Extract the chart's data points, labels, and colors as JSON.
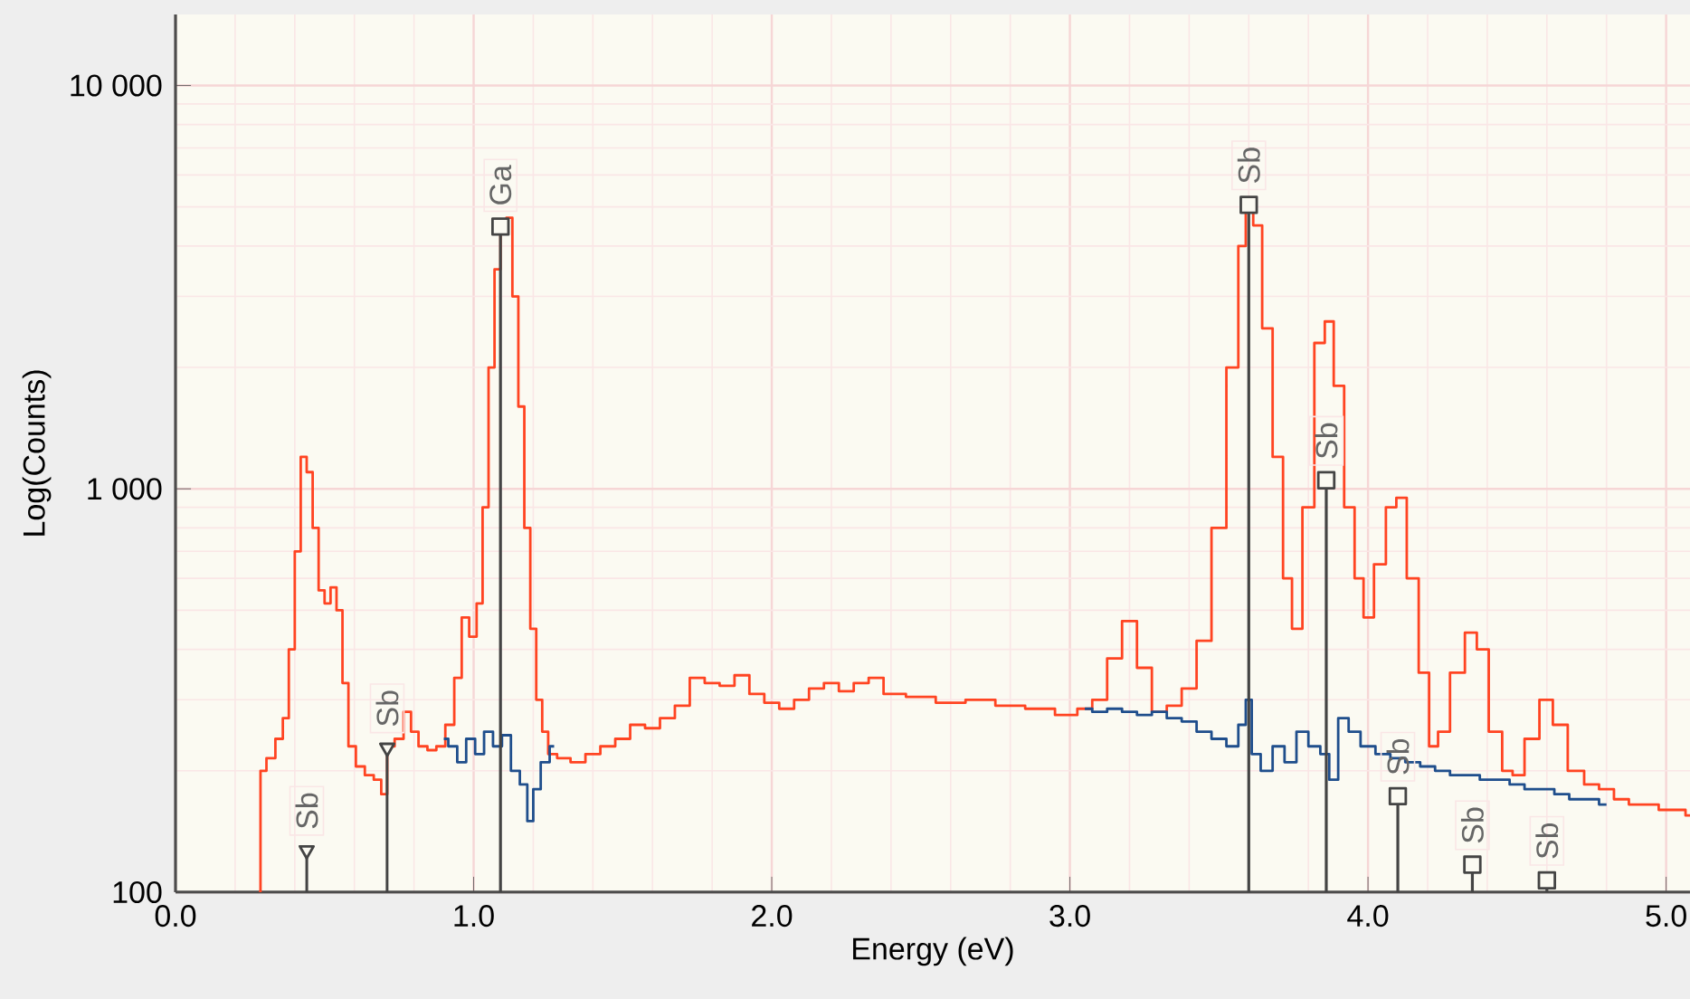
{
  "chart_data": {
    "type": "step",
    "xlabel": "Energy (eV)",
    "ylabel": "Log(Counts)",
    "log": "y",
    "grid": true,
    "marker": "none",
    "line_style": "solid",
    "xlim": [
      0,
      5.08
    ],
    "ylim": [
      100,
      15000
    ],
    "xticks": [
      {
        "value": 0,
        "label": "0.0"
      },
      {
        "value": 1,
        "label": "1.0"
      },
      {
        "value": 2,
        "label": "2.0"
      },
      {
        "value": 3,
        "label": "3.0"
      },
      {
        "value": 4,
        "label": "4.0"
      },
      {
        "value": 5,
        "label": "5.0"
      }
    ],
    "yticks": [
      {
        "value": 100,
        "label": "100"
      },
      {
        "value": 1000,
        "label": "1 000"
      },
      {
        "value": 10000,
        "label": "10 000"
      }
    ],
    "series": [
      {
        "color": "#ff4422",
        "x": [
          0.28,
          0.29,
          0.32,
          0.35,
          0.37,
          0.39,
          0.41,
          0.43,
          0.45,
          0.47,
          0.49,
          0.51,
          0.53,
          0.55,
          0.57,
          0.59,
          0.62,
          0.65,
          0.68,
          0.7,
          0.72,
          0.75,
          0.78,
          0.8,
          0.83,
          0.86,
          0.89,
          0.92,
          0.95,
          0.97,
          1.0,
          1.02,
          1.04,
          1.06,
          1.08,
          1.1,
          1.12,
          1.14,
          1.16,
          1.18,
          1.2,
          1.22,
          1.24,
          1.26,
          1.3,
          1.35,
          1.4,
          1.45,
          1.5,
          1.55,
          1.6,
          1.65,
          1.7,
          1.75,
          1.8,
          1.85,
          1.9,
          1.95,
          2.0,
          2.05,
          2.1,
          2.15,
          2.2,
          2.25,
          2.3,
          2.35,
          2.4,
          2.5,
          2.6,
          2.7,
          2.8,
          2.9,
          3.0,
          3.05,
          3.1,
          3.15,
          3.2,
          3.25,
          3.3,
          3.35,
          3.4,
          3.45,
          3.5,
          3.55,
          3.58,
          3.6,
          3.63,
          3.66,
          3.7,
          3.73,
          3.76,
          3.8,
          3.84,
          3.87,
          3.9,
          3.94,
          3.97,
          4.0,
          4.04,
          4.08,
          4.11,
          4.15,
          4.19,
          4.22,
          4.25,
          4.3,
          4.35,
          4.38,
          4.43,
          4.47,
          4.5,
          4.55,
          4.6,
          4.64,
          4.7,
          4.75,
          4.8,
          4.85,
          4.9,
          4.95,
          5.0,
          5.05,
          5.08
        ],
        "values": [
          100,
          200,
          215,
          240,
          270,
          400,
          700,
          1200,
          1100,
          800,
          560,
          520,
          570,
          500,
          330,
          230,
          205,
          195,
          190,
          175,
          230,
          240,
          280,
          250,
          230,
          225,
          230,
          260,
          340,
          480,
          430,
          520,
          900,
          2000,
          3500,
          4500,
          4700,
          3000,
          1600,
          800,
          450,
          300,
          250,
          220,
          215,
          210,
          220,
          230,
          240,
          260,
          255,
          270,
          290,
          340,
          330,
          325,
          345,
          310,
          295,
          285,
          300,
          320,
          330,
          315,
          330,
          340,
          310,
          305,
          295,
          300,
          290,
          285,
          275,
          285,
          300,
          380,
          470,
          360,
          280,
          290,
          320,
          420,
          800,
          2000,
          4000,
          5000,
          4500,
          2500,
          1200,
          600,
          450,
          900,
          2300,
          2600,
          1800,
          900,
          600,
          480,
          650,
          900,
          950,
          600,
          350,
          230,
          250,
          350,
          440,
          400,
          250,
          200,
          195,
          240,
          300,
          260,
          200,
          185,
          180,
          170,
          165,
          165,
          160,
          160,
          155
        ]
      },
      {
        "color": "#1f4e8c",
        "x": [
          0.9,
          0.93,
          0.96,
          0.99,
          1.02,
          1.05,
          1.08,
          1.11,
          1.14,
          1.17,
          1.19,
          1.21,
          1.24,
          1.27,
          1.28,
          3.05,
          3.1,
          3.15,
          3.2,
          3.25,
          3.3,
          3.35,
          3.4,
          3.45,
          3.5,
          3.55,
          3.58,
          3.6,
          3.62,
          3.66,
          3.7,
          3.74,
          3.78,
          3.82,
          3.86,
          3.88,
          3.92,
          3.95,
          4.0,
          4.05,
          4.1,
          4.15,
          4.2,
          4.25,
          4.3,
          4.35,
          4.4,
          4.45,
          4.5,
          4.55,
          4.6,
          4.65,
          4.7,
          4.75,
          4.8
        ],
        "values": [
          240,
          230,
          210,
          240,
          220,
          250,
          230,
          245,
          200,
          185,
          150,
          180,
          210,
          230,
          null,
          285,
          280,
          285,
          280,
          275,
          280,
          270,
          265,
          250,
          240,
          230,
          260,
          300,
          220,
          200,
          230,
          210,
          250,
          230,
          220,
          190,
          270,
          250,
          230,
          220,
          215,
          210,
          205,
          200,
          195,
          195,
          190,
          190,
          185,
          180,
          180,
          175,
          170,
          170,
          165
        ]
      },
      {
        "type": "lollipop",
        "color": "#444444",
        "marker": "triangle",
        "x": [
          0.44,
          0.71
        ],
        "values": [
          127,
          228
        ]
      },
      {
        "type": "lollipop",
        "color": "#444444",
        "marker": "square",
        "x": [
          1.09,
          3.6,
          3.86,
          4.1,
          4.35,
          4.6
        ],
        "values": [
          4470,
          5060,
          1050,
          173,
          117,
          107
        ]
      }
    ],
    "annotations": [
      {
        "text": "Sb",
        "x": 0.44,
        "y": 127
      },
      {
        "text": "Sb",
        "x": 0.71,
        "y": 228
      },
      {
        "text": "Ga",
        "x": 1.09,
        "y": 4470
      },
      {
        "text": "Sb",
        "x": 3.6,
        "y": 5060
      },
      {
        "text": "Sb",
        "x": 3.86,
        "y": 1050
      },
      {
        "text": "Sb",
        "x": 4.1,
        "y": 173
      },
      {
        "text": "Sb",
        "x": 4.35,
        "y": 117
      },
      {
        "text": "Sb",
        "x": 4.6,
        "y": 107
      }
    ]
  }
}
